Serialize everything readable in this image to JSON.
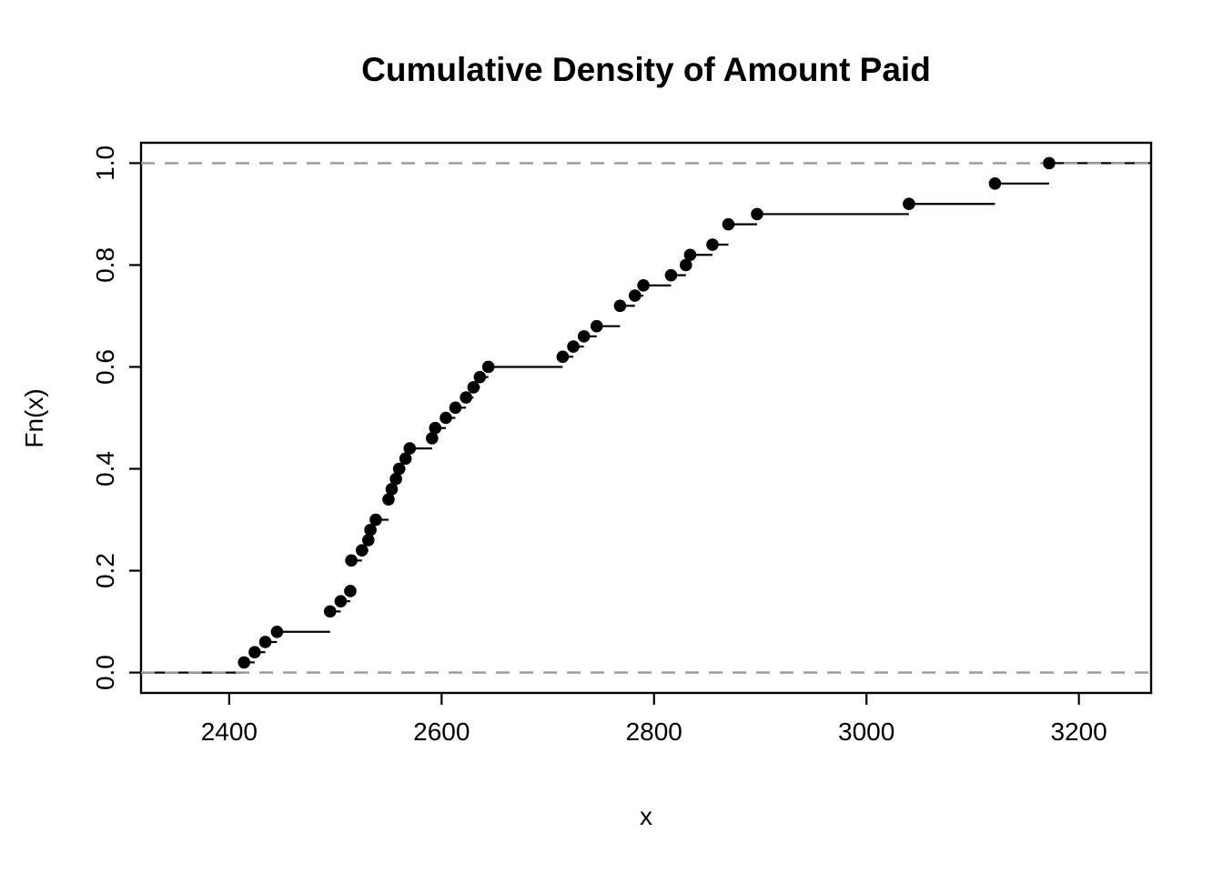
{
  "title": "Cumulative Density of Amount Paid",
  "colors": {
    "background": "#ffffff",
    "foreground": "#000000",
    "reference_line": "#999999"
  },
  "chart_data": {
    "type": "line",
    "subtype": "ecdf-step",
    "title": "Cumulative Density of Amount Paid",
    "xlabel": "x",
    "ylabel": "Fn(x)",
    "x_ticks": [
      "2400",
      "2600",
      "2800",
      "3000",
      "3200"
    ],
    "y_ticks": [
      "0.0",
      "0.2",
      "0.4",
      "0.6",
      "0.8",
      "1.0"
    ],
    "xlim": [
      2317,
      3268
    ],
    "ylim": [
      -0.04,
      1.04
    ],
    "grid": false,
    "legend": false,
    "reference_lines": {
      "y": [
        0,
        1
      ],
      "style": "dashed",
      "color": "#999999"
    },
    "points": [
      [
        2414,
        0.02
      ],
      [
        2424,
        0.04
      ],
      [
        2434,
        0.06
      ],
      [
        2445,
        0.08
      ],
      [
        2495,
        0.12
      ],
      [
        2505,
        0.14
      ],
      [
        2514,
        0.16
      ],
      [
        2515,
        0.22
      ],
      [
        2525,
        0.24
      ],
      [
        2531,
        0.26
      ],
      [
        2533,
        0.28
      ],
      [
        2538,
        0.3
      ],
      [
        2550,
        0.34
      ],
      [
        2553,
        0.36
      ],
      [
        2557,
        0.38
      ],
      [
        2560,
        0.4
      ],
      [
        2566,
        0.42
      ],
      [
        2570,
        0.44
      ],
      [
        2591,
        0.46
      ],
      [
        2594,
        0.48
      ],
      [
        2604,
        0.5
      ],
      [
        2613,
        0.52
      ],
      [
        2623,
        0.54
      ],
      [
        2630,
        0.56
      ],
      [
        2636,
        0.58
      ],
      [
        2644,
        0.6
      ],
      [
        2714,
        0.62
      ],
      [
        2724,
        0.64
      ],
      [
        2734,
        0.66
      ],
      [
        2746,
        0.68
      ],
      [
        2768,
        0.72
      ],
      [
        2782,
        0.74
      ],
      [
        2790,
        0.76
      ],
      [
        2816,
        0.78
      ],
      [
        2830,
        0.8
      ],
      [
        2834,
        0.82
      ],
      [
        2855,
        0.84
      ],
      [
        2870,
        0.88
      ],
      [
        2897,
        0.9
      ],
      [
        3040,
        0.92
      ],
      [
        3121,
        0.96
      ],
      [
        3172,
        1.0
      ]
    ]
  }
}
